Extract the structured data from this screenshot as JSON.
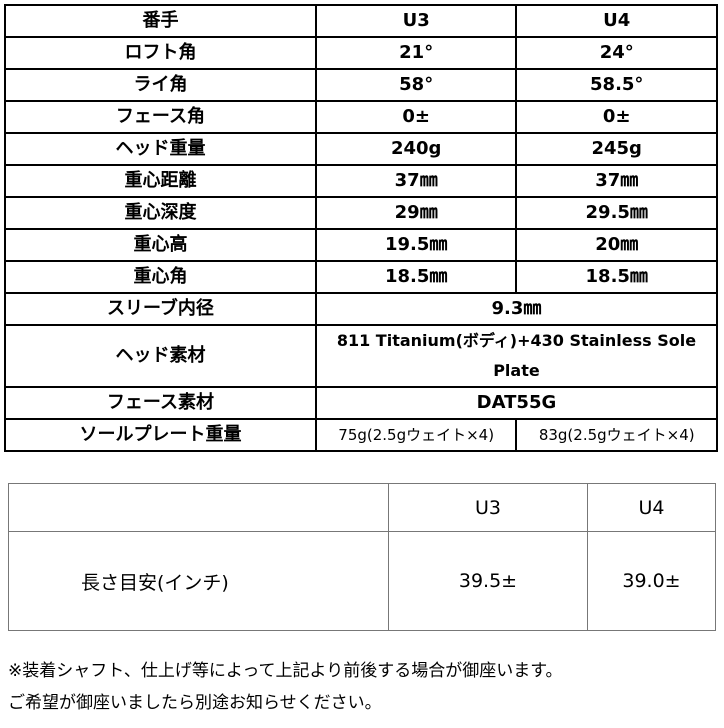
{
  "spec_table": {
    "header": [
      "番手",
      "U3",
      "U4"
    ],
    "rows": [
      [
        "ロフト角",
        "21°",
        "24°"
      ],
      [
        "ライ角",
        "58°",
        "58.5°"
      ],
      [
        "フェース角",
        "0±",
        "0±"
      ],
      [
        "ヘッド重量",
        "240g",
        "245g"
      ],
      [
        "重心距離",
        "37㎜",
        "37㎜"
      ],
      [
        "重心深度",
        "29㎜",
        "29.5㎜"
      ],
      [
        "重心高",
        "19.5㎜",
        "20㎜"
      ],
      [
        "重心角",
        "18.5㎜",
        "18.5㎜"
      ]
    ],
    "sleeve": {
      "label": "スリーブ内径",
      "value": "9.3㎜"
    },
    "head_material": {
      "label": "ヘッド素材",
      "value": "811 Titanium(ボディ)+430 Stainless Sole Plate"
    },
    "face_material": {
      "label": "フェース素材",
      "value": "DAT55G"
    },
    "sole_weight": {
      "label": "ソールプレート重量",
      "u3": "75g(2.5gウェイト×4)",
      "u4": "83g(2.5gウェイト×4)"
    }
  },
  "length_table": {
    "header": [
      "",
      "U3",
      "U4"
    ],
    "row": [
      "長さ目安(インチ)",
      "39.5±",
      "39.0±"
    ]
  },
  "notes": [
    "※装着シャフト、仕上げ等によって上記より前後する場合が御座います。",
    "ご希望が御座いましたら別途お知らせください。"
  ]
}
